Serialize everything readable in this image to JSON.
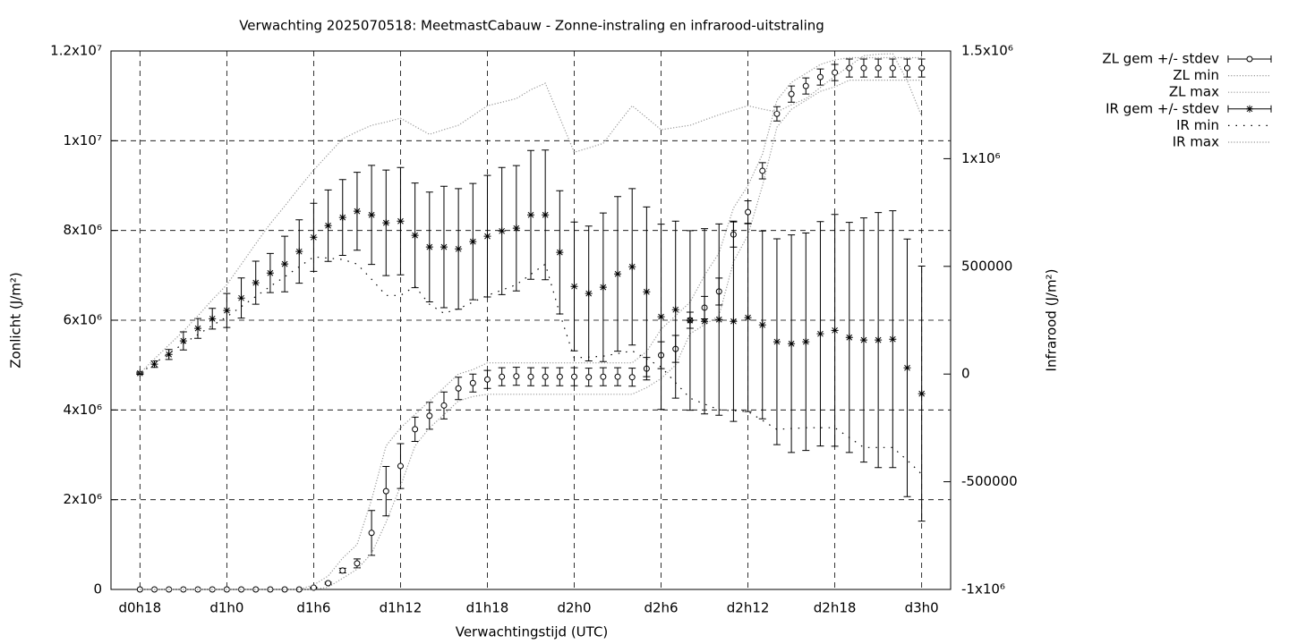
{
  "chart_data": {
    "type": "line",
    "title": "Verwachting 2025070518: MeetmastCabauw - Zonne-instraling en infrarood-uitstraling",
    "x_label": "Verwachtingstijd (UTC)",
    "y_label": "Zonlicht (J/m²)",
    "y2_label": "Infrarood (J/m²)",
    "categories": [
      "d0h18",
      null,
      null,
      null,
      null,
      null,
      "d1h0",
      null,
      null,
      null,
      null,
      null,
      "d1h6",
      null,
      null,
      null,
      null,
      null,
      "d1h12",
      null,
      null,
      null,
      null,
      null,
      "d1h18",
      null,
      null,
      null,
      null,
      null,
      "d2h0",
      null,
      null,
      null,
      null,
      null,
      "d2h6",
      null,
      null,
      null,
      null,
      null,
      "d2h12",
      null,
      null,
      null,
      null,
      null,
      "d2h18",
      null,
      null,
      null,
      null,
      null,
      "d3h0"
    ],
    "ylim": [
      0,
      12000000
    ],
    "yticks": [
      0,
      {
        "value": 2000000,
        "label": "2x10⁶"
      },
      {
        "value": 4000000,
        "label": "4x10⁶"
      },
      {
        "value": 6000000,
        "label": "6x10⁶"
      },
      {
        "value": 8000000,
        "label": "8x10⁶"
      },
      {
        "value": 10000000,
        "label": "1x10⁷"
      },
      {
        "value": 12000000,
        "label": "1.2x10⁷"
      }
    ],
    "y2lim": [
      -1000000,
      1500000
    ],
    "y2ticks": [
      {
        "value": -1000000,
        "label": "-1x10⁶"
      },
      -500000,
      0,
      500000,
      {
        "value": 1000000,
        "label": "1x10⁶"
      },
      {
        "value": 1500000,
        "label": "1.5x10⁶"
      }
    ],
    "grid": true,
    "legend": "outside-right",
    "series": [
      {
        "name": "ZL gem +/- stdev",
        "color": "#000000",
        "marker": "circle",
        "values": [
          0,
          0,
          0,
          0,
          0,
          0,
          0,
          0,
          0,
          0,
          0,
          0,
          40000,
          140000,
          420000,
          580000,
          1260000,
          2190000,
          2750000,
          3570000,
          3870000,
          4100000,
          4480000,
          4600000,
          4680000,
          4740000,
          4750000,
          4740000,
          4740000,
          4740000,
          4740000,
          4730000,
          4740000,
          4740000,
          4730000,
          4920000,
          5220000,
          5360000,
          6000000,
          6280000,
          6640000,
          7910000,
          8410000,
          9330000,
          10600000,
          11040000,
          11220000,
          11420000,
          11520000,
          11620000,
          11620000,
          11620000,
          11620000,
          11620000,
          11620000
        ],
        "errors": [
          0,
          0,
          0,
          0,
          0,
          0,
          0,
          0,
          0,
          0,
          0,
          0,
          10000,
          20000,
          50000,
          100000,
          500000,
          550000,
          500000,
          270000,
          300000,
          300000,
          250000,
          200000,
          200000,
          200000,
          200000,
          200000,
          200000,
          200000,
          200000,
          200000,
          200000,
          200000,
          200000,
          250000,
          300000,
          300000,
          180000,
          250000,
          300000,
          280000,
          250000,
          180000,
          160000,
          180000,
          180000,
          180000,
          180000,
          200000,
          200000,
          200000,
          200000,
          200000,
          200000
        ]
      },
      {
        "name": "ZL min",
        "color": "#999999",
        "dash": "dotted",
        "values": [
          0,
          0,
          0,
          0,
          0,
          0,
          0,
          0,
          0,
          0,
          0,
          0,
          0,
          50000,
          250000,
          450000,
          800000,
          1500000,
          2300000,
          3200000,
          3600000,
          3900000,
          4200000,
          4300000,
          4350000,
          4350000,
          4350000,
          4350000,
          4350000,
          4350000,
          4350000,
          4350000,
          4350000,
          4350000,
          4350000,
          4500000,
          4700000,
          5000000,
          5700000,
          5900000,
          6100000,
          7300000,
          7900000,
          9000000,
          10300000,
          10700000,
          10900000,
          11100000,
          11200000,
          11350000,
          11350000,
          11350000,
          11350000,
          11350000,
          11350000
        ]
      },
      {
        "name": "ZL max",
        "color": "#999999",
        "dash": "dotted",
        "values": [
          0,
          0,
          0,
          0,
          0,
          0,
          0,
          0,
          0,
          0,
          0,
          0,
          100000,
          300000,
          700000,
          1000000,
          2000000,
          3200000,
          3600000,
          3900000,
          4200000,
          4500000,
          4800000,
          4900000,
          5050000,
          5050000,
          5050000,
          5050000,
          5050000,
          5050000,
          5050000,
          5050000,
          5050000,
          5050000,
          5050000,
          5300000,
          5800000,
          6100000,
          6400000,
          7000000,
          7500000,
          8500000,
          9000000,
          9700000,
          10900000,
          11300000,
          11500000,
          11700000,
          11800000,
          11850000,
          11850000,
          11850000,
          11850000,
          11850000,
          11850000
        ]
      },
      {
        "name": "IR gem +/- stdev",
        "color": "#000000",
        "marker": "asterisk",
        "axis": "y2",
        "values": [
          4000,
          46000,
          91000,
          154000,
          212000,
          257000,
          295000,
          353000,
          424000,
          469000,
          511000,
          569000,
          635000,
          689000,
          727000,
          756000,
          739000,
          702000,
          710000,
          644000,
          590000,
          590000,
          581000,
          615000,
          640000,
          664000,
          677000,
          739000,
          739000,
          565000,
          407000,
          374000,
          403000,
          465000,
          498000,
          382000,
          266000,
          299000,
          249000,
          245000,
          253000,
          245000,
          262000,
          228000,
          150000,
          141000,
          150000,
          187000,
          203000,
          170000,
          158000,
          158000,
          162000,
          29000,
          -91000
        ],
        "errors": [
          5000,
          15000,
          23000,
          42000,
          46000,
          48000,
          79000,
          93000,
          100000,
          91000,
          129000,
          147000,
          158000,
          166000,
          176000,
          181000,
          230000,
          245000,
          249000,
          243000,
          255000,
          282000,
          280000,
          270000,
          282000,
          295000,
          291000,
          299000,
          301000,
          286000,
          299000,
          313000,
          345000,
          359000,
          363000,
          394000,
          430000,
          411000,
          417000,
          430000,
          444000,
          465000,
          436000,
          436000,
          478000,
          505000,
          505000,
          521000,
          538000,
          534000,
          567000,
          592000,
          596000,
          598000,
          592000
        ]
      },
      {
        "name": "IR min",
        "color": "#000000",
        "dash": "sparse",
        "axis": "y2",
        "values": [
          4000,
          50000,
          95000,
          141000,
          183000,
          225000,
          266000,
          313000,
          360000,
          407000,
          452000,
          498000,
          544000,
          538000,
          532000,
          511000,
          440000,
          365000,
          365000,
          407000,
          324000,
          282000,
          303000,
          334000,
          365000,
          390000,
          415000,
          463000,
          511000,
          282000,
          75000,
          79000,
          83000,
          95000,
          108000,
          70000,
          33000,
          -40000,
          -112000,
          -139000,
          -166000,
          -170000,
          -174000,
          -215000,
          -257000,
          -253000,
          -249000,
          -249000,
          -249000,
          -295000,
          -341000,
          -341000,
          -341000,
          -400000,
          -465000
        ]
      },
      {
        "name": "IR max",
        "color": "#999999",
        "dash": "dotted",
        "axis": "y2",
        "values": [
          4000,
          70000,
          135000,
          199000,
          270000,
          345000,
          415000,
          510000,
          605000,
          698000,
          780000,
          865000,
          947000,
          1020000,
          1092000,
          1125000,
          1155000,
          1170000,
          1188000,
          1150000,
          1113000,
          1135000,
          1155000,
          1200000,
          1246000,
          1262000,
          1279000,
          1320000,
          1350000,
          1190000,
          1030000,
          1050000,
          1071000,
          1160000,
          1246000,
          1190000,
          1134000,
          1145000,
          1155000,
          1180000,
          1204000,
          1225000,
          1246000,
          1230000,
          1217000,
          1250000,
          1279000,
          1330000,
          1383000,
          1430000,
          1478000,
          1485000,
          1487000,
          1362000,
          1196000
        ]
      }
    ]
  }
}
